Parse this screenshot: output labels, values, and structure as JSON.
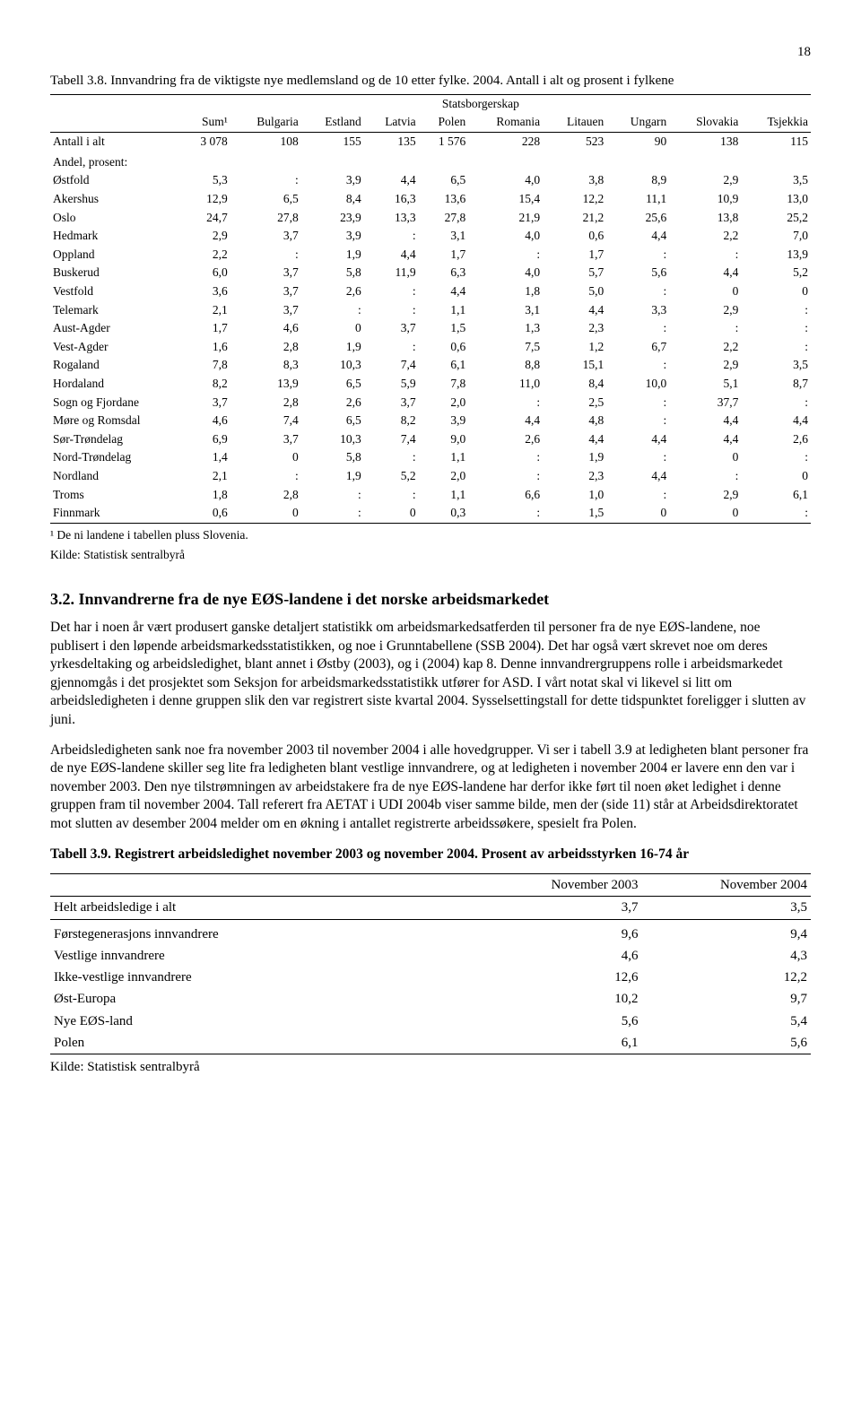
{
  "page_number": "18",
  "table38": {
    "title": "Tabell 3.8. Innvandring fra de viktigste nye medlemsland og de 10 etter fylke. 2004. Antall i alt og prosent i fylkene",
    "super_header": "Statsborgerskap",
    "columns": [
      "",
      "Sum¹",
      "Bulgaria",
      "Estland",
      "Latvia",
      "Polen",
      "Romania",
      "Litauen",
      "Ungarn",
      "Slovakia",
      "Tsjekkia"
    ],
    "total_row": [
      "Antall i alt",
      "3 078",
      "108",
      "155",
      "135",
      "1 576",
      "228",
      "523",
      "90",
      "138",
      "115"
    ],
    "section_label": "Andel, prosent:",
    "rows": [
      [
        "Østfold",
        "5,3",
        ":",
        "3,9",
        "4,4",
        "6,5",
        "4,0",
        "3,8",
        "8,9",
        "2,9",
        "3,5"
      ],
      [
        "Akershus",
        "12,9",
        "6,5",
        "8,4",
        "16,3",
        "13,6",
        "15,4",
        "12,2",
        "11,1",
        "10,9",
        "13,0"
      ],
      [
        "Oslo",
        "24,7",
        "27,8",
        "23,9",
        "13,3",
        "27,8",
        "21,9",
        "21,2",
        "25,6",
        "13,8",
        "25,2"
      ],
      [
        "Hedmark",
        "2,9",
        "3,7",
        "3,9",
        ":",
        "3,1",
        "4,0",
        "0,6",
        "4,4",
        "2,2",
        "7,0"
      ],
      [
        "Oppland",
        "2,2",
        ":",
        "1,9",
        "4,4",
        "1,7",
        ":",
        "1,7",
        ":",
        ":",
        "13,9"
      ],
      [
        "Buskerud",
        "6,0",
        "3,7",
        "5,8",
        "11,9",
        "6,3",
        "4,0",
        "5,7",
        "5,6",
        "4,4",
        "5,2"
      ],
      [
        "Vestfold",
        "3,6",
        "3,7",
        "2,6",
        ":",
        "4,4",
        "1,8",
        "5,0",
        ":",
        "0",
        "0"
      ],
      [
        "Telemark",
        "2,1",
        "3,7",
        ":",
        ":",
        "1,1",
        "3,1",
        "4,4",
        "3,3",
        "2,9",
        ":"
      ],
      [
        "Aust-Agder",
        "1,7",
        "4,6",
        "0",
        "3,7",
        "1,5",
        "1,3",
        "2,3",
        ":",
        ":",
        ":"
      ],
      [
        "Vest-Agder",
        "1,6",
        "2,8",
        "1,9",
        ":",
        "0,6",
        "7,5",
        "1,2",
        "6,7",
        "2,2",
        ":"
      ],
      [
        "Rogaland",
        "7,8",
        "8,3",
        "10,3",
        "7,4",
        "6,1",
        "8,8",
        "15,1",
        ":",
        "2,9",
        "3,5"
      ],
      [
        "Hordaland",
        "8,2",
        "13,9",
        "6,5",
        "5,9",
        "7,8",
        "11,0",
        "8,4",
        "10,0",
        "5,1",
        "8,7"
      ],
      [
        "Sogn og Fjordane",
        "3,7",
        "2,8",
        "2,6",
        "3,7",
        "2,0",
        ":",
        "2,5",
        ":",
        "37,7",
        ":"
      ],
      [
        "Møre og Romsdal",
        "4,6",
        "7,4",
        "6,5",
        "8,2",
        "3,9",
        "4,4",
        "4,8",
        ":",
        "4,4",
        "4,4"
      ],
      [
        "Sør-Trøndelag",
        "6,9",
        "3,7",
        "10,3",
        "7,4",
        "9,0",
        "2,6",
        "4,4",
        "4,4",
        "4,4",
        "2,6"
      ],
      [
        "Nord-Trøndelag",
        "1,4",
        "0",
        "5,8",
        ":",
        "1,1",
        ":",
        "1,9",
        ":",
        "0",
        ":"
      ],
      [
        "Nordland",
        "2,1",
        ":",
        "1,9",
        "5,2",
        "2,0",
        ":",
        "2,3",
        "4,4",
        ":",
        "0"
      ],
      [
        "Troms",
        "1,8",
        "2,8",
        ":",
        ":",
        "1,1",
        "6,6",
        "1,0",
        ":",
        "2,9",
        "6,1"
      ],
      [
        "Finnmark",
        "0,6",
        "0",
        ":",
        "0",
        "0,3",
        ":",
        "1,5",
        "0",
        "0",
        ":"
      ]
    ],
    "footnote": "¹ De ni landene i tabellen pluss Slovenia.",
    "source": "Kilde: Statistisk sentralbyrå"
  },
  "section": {
    "heading": "3.2.    Innvandrerne fra de nye EØS-landene i det norske arbeidsmarkedet",
    "para1": "Det har i noen år vært produsert ganske detaljert statistikk om arbeidsmarkedsatferden til personer fra de nye EØS-landene, noe publisert i den løpende arbeidsmarkedsstatistikken, og noe i Grunntabellene (SSB 2004). Det har også vært skrevet noe om deres yrkesdeltaking og arbeidsledighet, blant annet i Østby (2003), og i (2004) kap 8. Denne innvandrergruppens rolle i arbeidsmarkedet gjennomgås i det prosjektet som Seksjon for arbeidsmarkedsstatistikk utfører for ASD. I vårt notat skal vi likevel si litt om arbeidsledigheten i denne gruppen slik den var registrert  siste kvartal 2004. Sysselsettingstall for dette tidspunktet foreligger i slutten av juni.",
    "para2": "Arbeidsledigheten sank noe fra november 2003 til november 2004 i alle hovedgrupper. Vi ser i tabell 3.9 at ledigheten blant personer fra de nye EØS-landene skiller seg lite fra ledigheten blant vestlige innvandrere, og at ledigheten i november 2004 er lavere enn den var i november 2003. Den nye tilstrømningen av arbeidstakere fra de nye EØS-landene har derfor ikke ført til noen øket ledighet i denne gruppen fram til november 2004.  Tall referert fra AETAT i UDI 2004b viser samme bilde, men der (side 11) står at Arbeidsdirektoratet mot slutten av desember 2004 melder om en økning i antallet registrerte arbeidssøkere, spesielt fra Polen."
  },
  "table39": {
    "title": "Tabell 3.9. Registrert arbeidsledighet november 2003 og november 2004. Prosent av arbeidsstyrken 16-74 år",
    "columns": [
      "",
      "November 2003",
      "November 2004"
    ],
    "rows": [
      [
        "Helt arbeidsledige i alt",
        "3,7",
        "3,5"
      ],
      [
        "",
        "",
        ""
      ],
      [
        "Førstegenerasjons innvandrere",
        "9,6",
        "9,4"
      ],
      [
        "Vestlige innvandrere",
        "4,6",
        "4,3"
      ],
      [
        "Ikke-vestlige innvandrere",
        "12,6",
        "12,2"
      ],
      [
        "Øst-Europa",
        "10,2",
        "9,7"
      ],
      [
        "Nye EØS-land",
        "5,6",
        "5,4"
      ],
      [
        "Polen",
        "6,1",
        "5,6"
      ]
    ],
    "source": "Kilde: Statistisk sentralbyrå"
  }
}
